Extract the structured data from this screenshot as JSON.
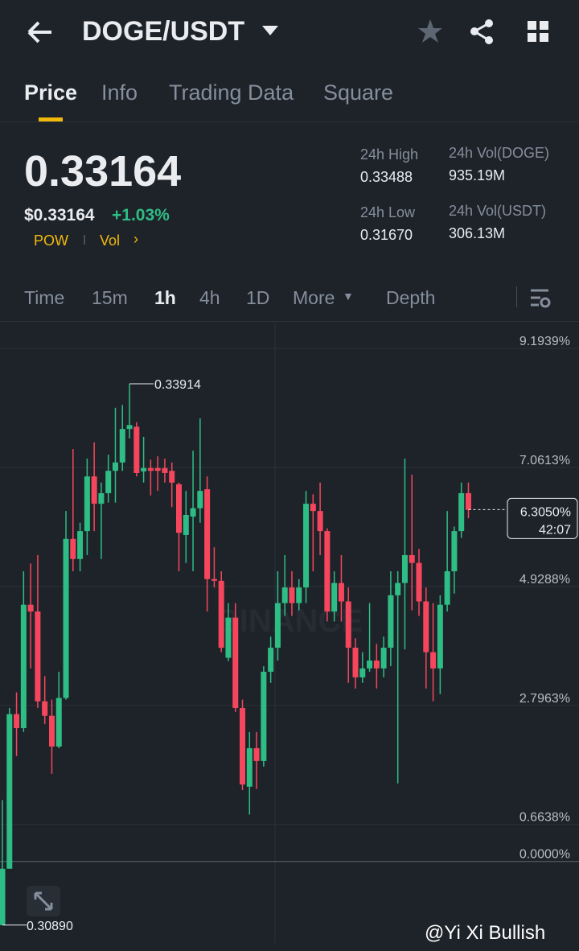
{
  "header": {
    "pair": "DOGE/USDT"
  },
  "tabs": [
    "Price",
    "Info",
    "Trading Data",
    "Square"
  ],
  "price": {
    "last": "0.33164",
    "usd": "$0.33164",
    "change": "+1.03%",
    "tags": [
      "POW",
      "Vol"
    ]
  },
  "stats": [
    {
      "label": "24h High",
      "value": "0.33488"
    },
    {
      "label": "24h Vol(DOGE)",
      "value": "935.19M"
    },
    {
      "label": "24h Low",
      "value": "0.31670"
    },
    {
      "label": "24h Vol(USDT)",
      "value": "306.13M"
    }
  ],
  "intervals": [
    "Time",
    "15m",
    "1h",
    "4h",
    "1D",
    "More",
    "Depth"
  ],
  "chart_data": {
    "type": "candlestick",
    "up_color": "#2ebd85",
    "down_color": "#f6465d",
    "open": [
      -1.14,
      -0.13,
      2.64,
      2.39,
      4.6,
      4.48,
      2.87,
      2.61,
      2.06,
      2.93,
      5.78,
      5.42,
      5.92,
      6.9,
      6.41,
      6.6,
      7.0,
      7.15,
      7.75,
      7.79,
      6.99,
      7.05,
      7.05,
      7.05,
      7.0,
      6.76,
      5.85,
      6.18,
      6.33,
      6.67,
      5.06,
      5.03,
      3.65,
      4.37,
      2.75,
      1.34,
      2.03,
      1.8,
      3.4,
      3.83,
      4.63,
      4.91,
      4.63,
      4.91,
      6.41,
      6.28,
      5.92,
      4.48,
      4.99,
      4.66,
      3.83,
      3.3,
      3.46,
      3.6,
      3.46,
      3.83,
      4.77,
      4.99,
      5.49,
      5.35,
      4.66,
      3.75,
      3.46,
      4.6,
      5.2,
      5.92,
      6.6
    ],
    "high": [
      1.1,
      2.75,
      3.03,
      5.2,
      5.34,
      5.49,
      3.32,
      2.9,
      3.4,
      6.28,
      7.39,
      6.07,
      7.22,
      7.51,
      6.79,
      7.29,
      8.13,
      8.18,
      8.56,
      7.87,
      7.61,
      7.2,
      7.26,
      7.22,
      7.15,
      6.79,
      6.64,
      7.36,
      7.94,
      6.9,
      5.63,
      5.2,
      4.63,
      4.63,
      2.9,
      2.32,
      2.32,
      3.5,
      4.03,
      5.2,
      5.49,
      5.2,
      5.06,
      6.64,
      6.58,
      6.79,
      5.97,
      5.2,
      5.49,
      4.91,
      4.0,
      3.75,
      4.63,
      3.9,
      4.03,
      5.2,
      5.2,
      7.22,
      6.93,
      5.6,
      4.91,
      4.63,
      4.77,
      6.28,
      6.0,
      6.79,
      6.79
    ],
    "low": [
      -1.14,
      -0.13,
      1.89,
      2.32,
      3.46,
      2.75,
      2.46,
      1.57,
      2.03,
      2.9,
      5.2,
      5.2,
      5.49,
      5.92,
      5.42,
      6.43,
      6.43,
      7.0,
      7.58,
      6.9,
      6.79,
      6.56,
      6.64,
      6.79,
      6.35,
      5.2,
      5.35,
      5.2,
      6.07,
      4.48,
      4.91,
      3.75,
      3.59,
      2.68,
      1.28,
      0.84,
      1.3,
      1.7,
      3.2,
      3.6,
      4.4,
      4.4,
      4.5,
      4.63,
      5.2,
      5.49,
      4.3,
      4.3,
      4.3,
      3.2,
      3.1,
      3.2,
      3.4,
      3.1,
      3.3,
      3.5,
      1.4,
      3.8,
      4.5,
      4.4,
      3.1,
      2.87,
      3.0,
      4.48,
      4.8,
      5.8,
      6.15
    ],
    "close": [
      -0.13,
      2.64,
      2.39,
      4.6,
      4.48,
      2.87,
      2.61,
      2.06,
      2.93,
      5.78,
      5.42,
      5.92,
      6.9,
      6.41,
      6.6,
      7.0,
      7.15,
      7.75,
      7.82,
      6.96,
      7.05,
      7.0,
      7.0,
      6.96,
      6.79,
      5.89,
      6.21,
      6.33,
      6.64,
      5.06,
      5.03,
      3.83,
      4.37,
      2.75,
      1.38,
      2.03,
      1.8,
      3.4,
      3.83,
      4.63,
      4.91,
      4.63,
      4.91,
      6.41,
      6.28,
      5.92,
      4.48,
      4.99,
      4.66,
      3.83,
      3.3,
      3.46,
      3.6,
      3.46,
      3.83,
      4.77,
      4.99,
      5.49,
      5.35,
      4.66,
      3.75,
      3.46,
      4.6,
      5.2,
      5.92,
      6.6,
      6.3
    ],
    "ylim": [
      -1.46,
      9.67
    ],
    "yticks": [
      {
        "value": 9.1939,
        "label": "9.1939%"
      },
      {
        "value": 7.0613,
        "label": "7.0613%"
      },
      {
        "value": 4.9288,
        "label": "4.9288%"
      },
      {
        "value": 2.7963,
        "label": "2.7963%"
      },
      {
        "value": 0.6638,
        "label": "0.6638%"
      },
      {
        "value": 0,
        "label": "0.0000%"
      }
    ],
    "high_label": "0.33914",
    "low_label": "0.30890",
    "last_value": 6.305,
    "last_label": "6.3050%",
    "countdown": "42:07",
    "watermark": "BINANCE"
  },
  "credit": "@Yi Xi Bullish"
}
